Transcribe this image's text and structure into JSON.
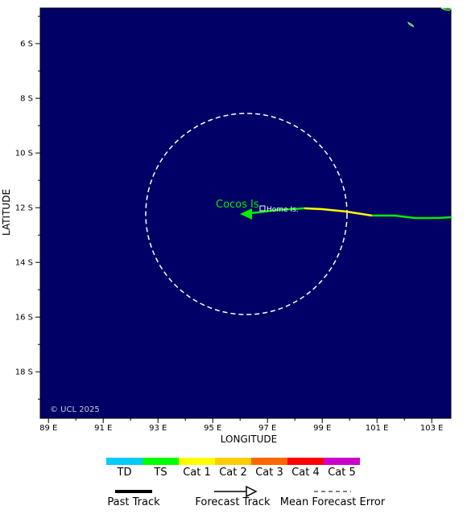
{
  "map": {
    "ocean_color": "#000066",
    "land_color": "#006400",
    "lon_range": [
      88.7,
      103.7
    ],
    "lat_range": [
      -4.7,
      -19.7
    ],
    "x_title": "LONGITUDE",
    "y_title": "LATITUDE",
    "x_ticks": [
      "89 E",
      "91 E",
      "93 E",
      "95 E",
      "97 E",
      "99 E",
      "101 E",
      "103 E"
    ],
    "y_ticks": [
      "6 S",
      "8 S",
      "10 S",
      "12 S",
      "14 S",
      "16 S",
      "18 S"
    ],
    "copyright": "© UCL 2025"
  },
  "places": {
    "cocos": "Cocos Is",
    "home": "Home Is."
  },
  "track": {
    "intensity_colors": {
      "TS": "#00ee00",
      "Cat 1": "#ffff00"
    },
    "cone_color": "#ffffff"
  },
  "legend": {
    "categories": [
      {
        "label": "TD",
        "color": "#00ccff"
      },
      {
        "label": "TS",
        "color": "#00ff00"
      },
      {
        "label": "Cat 1",
        "color": "#ffff00"
      },
      {
        "label": "Cat 2",
        "color": "#ffcc00"
      },
      {
        "label": "Cat 3",
        "color": "#ff6600"
      },
      {
        "label": "Cat 4",
        "color": "#ff0000"
      },
      {
        "label": "Cat 5",
        "color": "#cc00cc"
      }
    ],
    "past_track": "Past Track",
    "forecast_track": "Forecast Track",
    "mean_error": "Mean Forecast Error"
  }
}
